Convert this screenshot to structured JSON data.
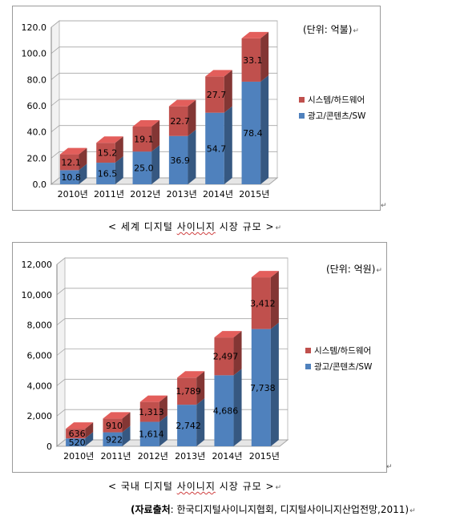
{
  "chart_data": [
    {
      "type": "bar",
      "stacked": true,
      "categories": [
        "2010년",
        "2011년",
        "2012년",
        "2013년",
        "2014년",
        "2015년"
      ],
      "series": [
        {
          "name": "광고/콘텐츠/SW",
          "values": [
            10.8,
            16.5,
            25.0,
            36.9,
            54.7,
            78.4
          ],
          "labels": [
            "10.8",
            "16.5",
            "25.0",
            "36.9",
            "54.7",
            "78.4"
          ],
          "color": "#4f81bd"
        },
        {
          "name": "시스템/하드웨어",
          "values": [
            12.1,
            15.2,
            19.1,
            22.7,
            27.7,
            33.1
          ],
          "labels": [
            "12.1",
            "15.2",
            "19.1",
            "22.7",
            "27.7",
            "33.1"
          ],
          "color": "#c0504d"
        }
      ],
      "y_ticks": [
        "0.0",
        "20.0",
        "40.0",
        "60.0",
        "80.0",
        "100.0",
        "120.0"
      ],
      "ylim": [
        0,
        120
      ],
      "unit": "(단위: 억불)",
      "legend_position": "right"
    },
    {
      "type": "bar",
      "stacked": true,
      "categories": [
        "2010년",
        "2011년",
        "2012년",
        "2013년",
        "2014년",
        "2015년"
      ],
      "series": [
        {
          "name": "광고/콘텐츠/SW",
          "values": [
            520,
            922,
            1614,
            2742,
            4686,
            7738
          ],
          "labels": [
            "520",
            "922",
            "1,614",
            "2,742",
            "4,686",
            "7,738"
          ],
          "color": "#4f81bd"
        },
        {
          "name": "시스템/하드웨어",
          "values": [
            636,
            910,
            1313,
            1789,
            2497,
            3412
          ],
          "labels": [
            "636",
            "910",
            "1,313",
            "1,789",
            "2,497",
            "3,412"
          ],
          "color": "#c0504d"
        }
      ],
      "y_ticks": [
        "0",
        "2,000",
        "4,000",
        "6,000",
        "8,000",
        "10,000",
        "12,000"
      ],
      "ylim": [
        0,
        12000
      ],
      "unit": "(단위: 억원)",
      "legend_position": "right"
    }
  ],
  "captions": {
    "world_prefix": "< 세계 디지털 ",
    "world_word": "사이니지",
    "world_suffix": " 시장 규모 >",
    "domestic_prefix": "< 국내 디지털 ",
    "domestic_word": "사이니지",
    "domestic_suffix": " 시장 규모 >"
  },
  "source": {
    "open": "(자료출처",
    "rest": ": 한국디지털사이니지협회,  디지털사이니지산업전망,2011)"
  },
  "marks": {
    "paragraph": "↵",
    "return": "↵"
  }
}
